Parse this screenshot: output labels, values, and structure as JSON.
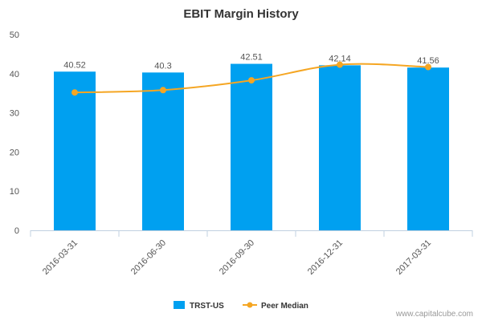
{
  "chart_data": {
    "type": "bar",
    "title": "EBIT Margin History",
    "xlabel": "",
    "ylabel": "",
    "ylim": [
      0,
      50
    ],
    "yticks": [
      0,
      10,
      20,
      30,
      40,
      50
    ],
    "grid": false,
    "legend_position": "bottom-center",
    "categories": [
      "2016-03-31",
      "2016-06-30",
      "2016-09-30",
      "2016-12-31",
      "2017-03-31"
    ],
    "series": [
      {
        "name": "TRST-US",
        "type": "bar",
        "color": "#00A0F0",
        "values": [
          40.52,
          40.3,
          42.51,
          42.14,
          41.56
        ],
        "data_labels": [
          "40.52",
          "40.3",
          "42.51",
          "42.14",
          "41.56"
        ]
      },
      {
        "name": "Peer Median",
        "type": "line",
        "color": "#F5A623",
        "values": [
          35.2,
          35.8,
          38.3,
          42.3,
          41.7
        ]
      }
    ]
  },
  "credit": "www.capitalcube.com"
}
